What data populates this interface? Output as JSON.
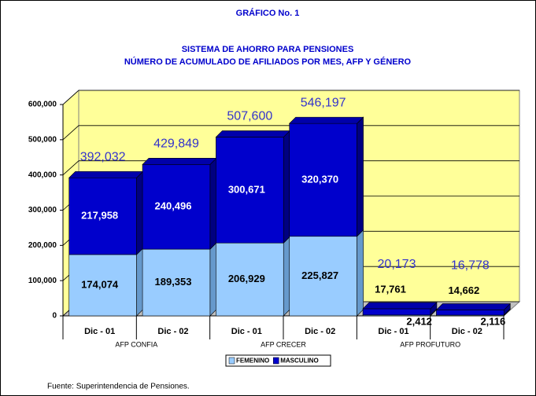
{
  "chart_data": {
    "type": "bar",
    "stacked": true,
    "title": "GRÁFICO No. 1",
    "subtitle": [
      "SISTEMA DE AHORRO PARA PENSIONES",
      "NÚMERO DE ACUMULADO DE AFILIADOS POR MES, AFP Y GÉNERO"
    ],
    "categories": [
      "Dic - 01",
      "Dic - 02",
      "Dic - 01",
      "Dic - 02",
      "Dic - 01",
      "Dic - 02"
    ],
    "groups": [
      "AFP CONFIA",
      "AFP CRECER",
      "AFP PROFUTURO"
    ],
    "series": [
      {
        "name": "FEMENINO",
        "color": "#99ccff",
        "values": [
          174074,
          189353,
          206929,
          225827,
          2412,
          2116
        ],
        "value_labels": [
          "174,074",
          "189,353",
          "206,929",
          "225,827",
          "2,412",
          "2,116"
        ]
      },
      {
        "name": "MASCULINO",
        "color": "#0000cc",
        "values": [
          217958,
          240496,
          300671,
          320370,
          17761,
          14662
        ],
        "value_labels": [
          "217,958",
          "240,496",
          "300,671",
          "320,370",
          "17,761",
          "14,662"
        ]
      }
    ],
    "totals": {
      "values": [
        392032,
        429849,
        507600,
        546197,
        20173,
        16778
      ],
      "value_labels": [
        "392,032",
        "429,849",
        "507,600",
        "546,197",
        "20,173",
        "16,778"
      ]
    },
    "ylim": [
      0,
      600000
    ],
    "yticks": [
      0,
      {
        "value": 100000,
        "label": "100,000"
      },
      {
        "value": 200000,
        "label": "200,000"
      },
      {
        "value": 300000,
        "label": "300,000"
      },
      {
        "value": 400000,
        "label": "400,000"
      },
      {
        "value": 500000,
        "label": "500,000"
      },
      {
        "value": 600000,
        "label": "600,000"
      }
    ],
    "grid": true,
    "legend": "bottom",
    "source": "Fuente: Superintendencia de Pensiones."
  }
}
